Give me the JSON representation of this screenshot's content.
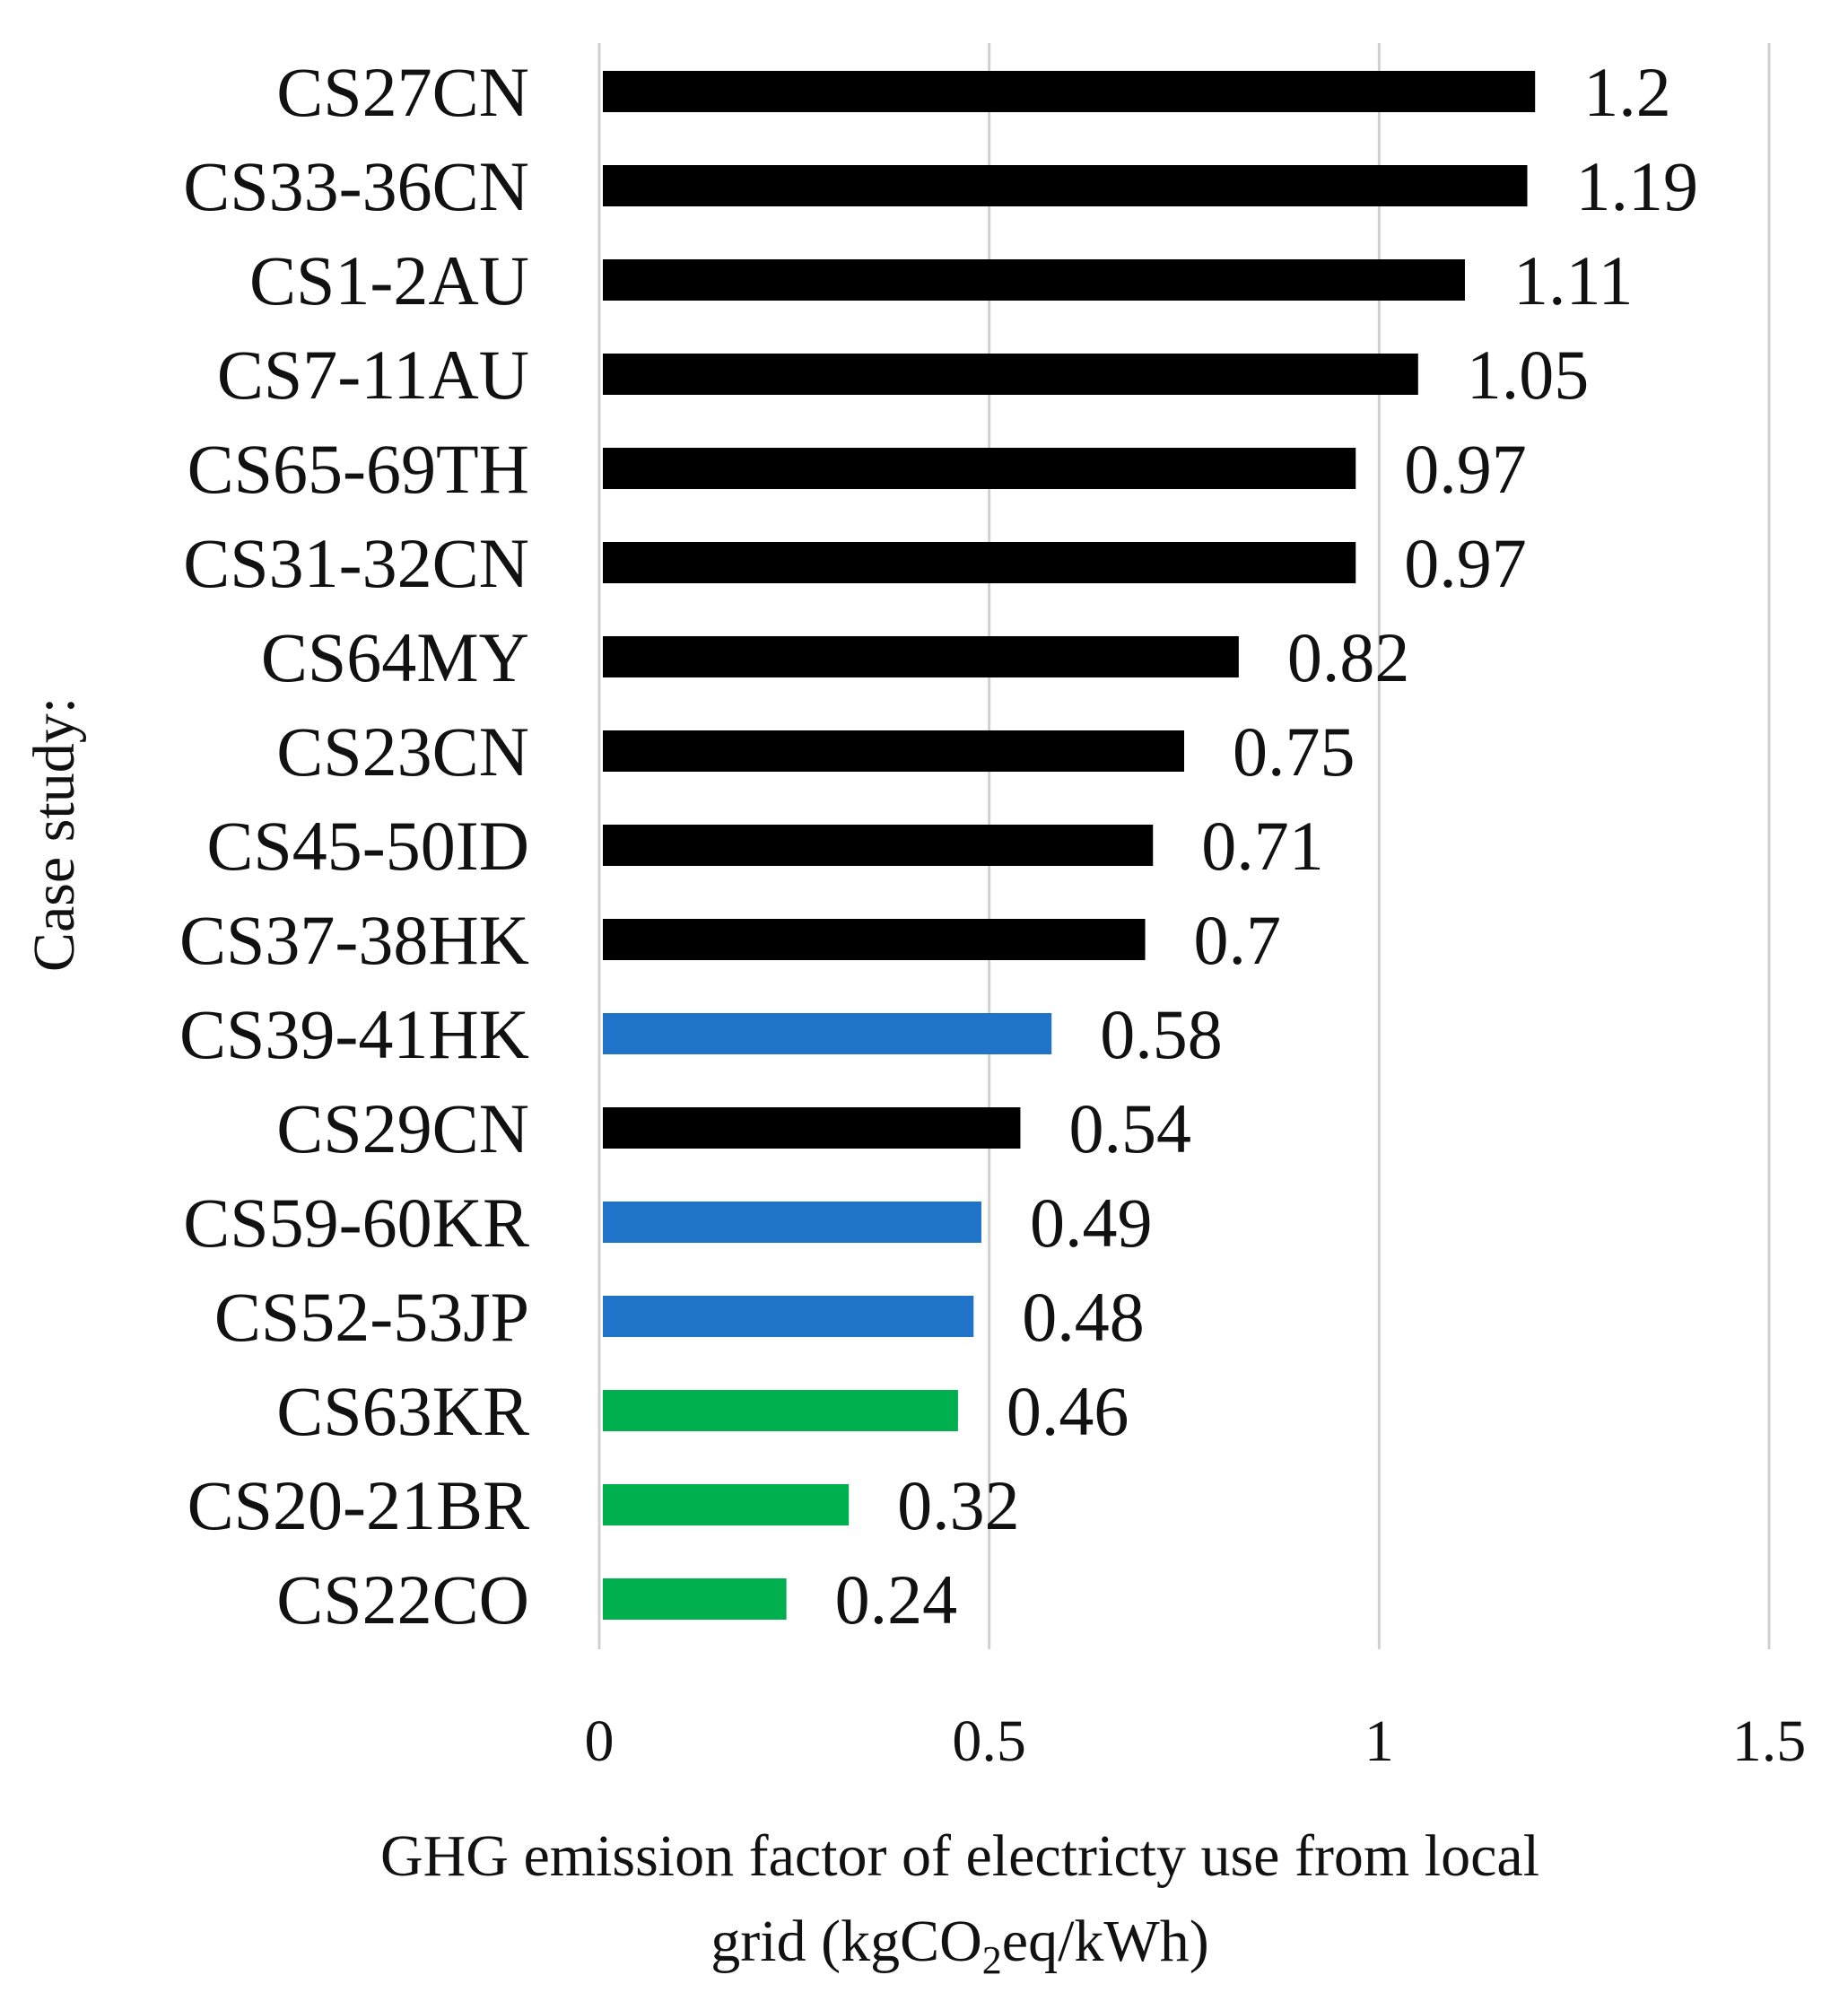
{
  "chart_data": {
    "type": "bar",
    "orientation": "horizontal",
    "xlabel_line1": "GHG emission factor of electricty use from local",
    "xlabel_line2_pre": "grid (kgCO",
    "xlabel_line2_sub": "2",
    "xlabel_line2_post": "eq/kWh)",
    "ylabel": "Case study:",
    "xlim": [
      0,
      1.5
    ],
    "xticks": [
      "0",
      "0.5",
      "1",
      "1.5"
    ],
    "xtick_values": [
      0,
      0.5,
      1,
      1.5
    ],
    "grid": true,
    "colors": {
      "black": "#000000",
      "blue": "#1f73c8",
      "green": "#00b04f",
      "grid": "#d0d0d0"
    },
    "bars": [
      {
        "category": "CS27CN",
        "value": 1.2,
        "label": "1.2",
        "color": "black"
      },
      {
        "category": "CS33-36CN",
        "value": 1.19,
        "label": "1.19",
        "color": "black"
      },
      {
        "category": "CS1-2AU",
        "value": 1.11,
        "label": "1.11",
        "color": "black"
      },
      {
        "category": "CS7-11AU",
        "value": 1.05,
        "label": "1.05",
        "color": "black"
      },
      {
        "category": "CS65-69TH",
        "value": 0.97,
        "label": "0.97",
        "color": "black"
      },
      {
        "category": "CS31-32CN",
        "value": 0.97,
        "label": "0.97",
        "color": "black"
      },
      {
        "category": "CS64MY",
        "value": 0.82,
        "label": "0.82",
        "color": "black"
      },
      {
        "category": "CS23CN",
        "value": 0.75,
        "label": "0.75",
        "color": "black"
      },
      {
        "category": "CS45-50ID",
        "value": 0.71,
        "label": "0.71",
        "color": "black"
      },
      {
        "category": "CS37-38HK",
        "value": 0.7,
        "label": "0.7",
        "color": "black"
      },
      {
        "category": "CS39-41HK",
        "value": 0.58,
        "label": "0.58",
        "color": "blue"
      },
      {
        "category": "CS29CN",
        "value": 0.54,
        "label": "0.54",
        "color": "black"
      },
      {
        "category": "CS59-60KR",
        "value": 0.49,
        "label": "0.49",
        "color": "blue"
      },
      {
        "category": "CS52-53JP",
        "value": 0.48,
        "label": "0.48",
        "color": "blue"
      },
      {
        "category": "CS63KR",
        "value": 0.46,
        "label": "0.46",
        "color": "green"
      },
      {
        "category": "CS20-21BR",
        "value": 0.32,
        "label": "0.32",
        "color": "green"
      },
      {
        "category": "CS22CO",
        "value": 0.24,
        "label": "0.24",
        "color": "green"
      }
    ]
  }
}
